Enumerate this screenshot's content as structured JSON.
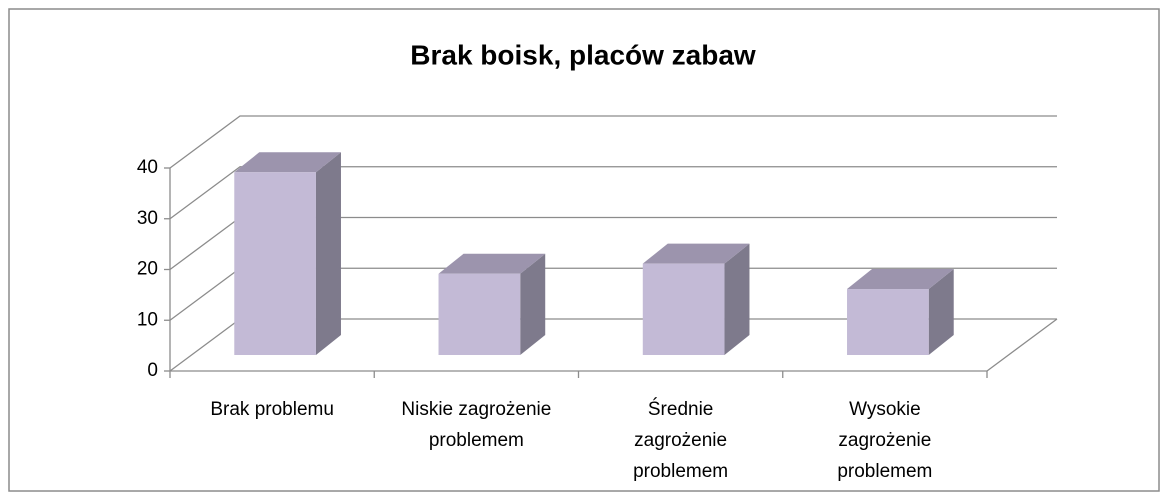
{
  "chart_data": {
    "type": "bar3d",
    "title": "Brak boisk, placów zabaw",
    "categories": [
      [
        "Brak problemu"
      ],
      [
        "Niskie zagrożenie",
        "problemem"
      ],
      [
        "Średnie",
        "zagrożenie",
        "problemem"
      ],
      [
        "Wysokie",
        "zagrożenie",
        "problemem"
      ]
    ],
    "values": [
      36,
      16,
      18,
      13
    ],
    "colors": {
      "front": "#c3bad6",
      "side": "#7e7a8c",
      "top": "#9c94ad"
    },
    "ylim": [
      0,
      40
    ],
    "yticks": [
      0,
      10,
      20,
      30,
      40
    ],
    "grid": true
  }
}
